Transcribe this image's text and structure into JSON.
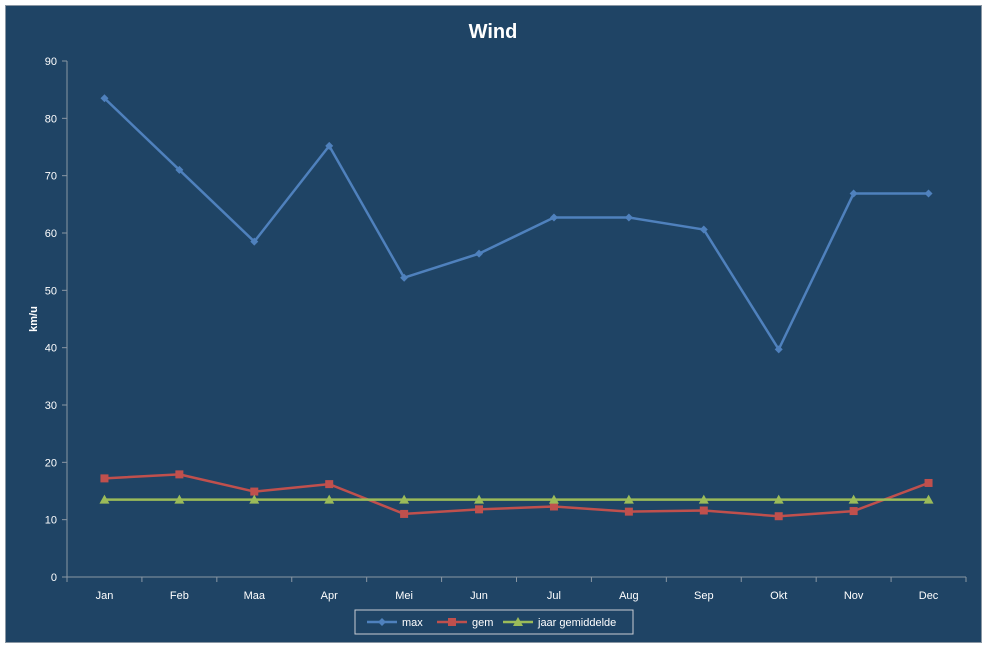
{
  "chart_data": {
    "type": "line",
    "title": "Wind",
    "xlabel": "",
    "ylabel": "km/u",
    "categories": [
      "Jan",
      "Feb",
      "Maa",
      "Apr",
      "Mei",
      "Jun",
      "Jul",
      "Aug",
      "Sep",
      "Okt",
      "Nov",
      "Dec"
    ],
    "ylim": [
      0,
      90
    ],
    "yticks": [
      0,
      10,
      20,
      30,
      40,
      50,
      60,
      70,
      80,
      90
    ],
    "grid": false,
    "legend_position": "bottom",
    "series": [
      {
        "name": "max",
        "color": "#4F81BD",
        "marker": "diamond",
        "values": [
          83.5,
          71.0,
          58.5,
          75.2,
          52.2,
          56.4,
          62.7,
          62.7,
          60.6,
          39.7,
          66.9,
          66.9
        ]
      },
      {
        "name": "gem",
        "color": "#C0504D",
        "marker": "square",
        "values": [
          17.2,
          17.9,
          14.9,
          16.2,
          11.0,
          11.8,
          12.3,
          11.4,
          11.6,
          10.6,
          11.5,
          16.4
        ]
      },
      {
        "name": "jaar gemiddelde",
        "color": "#9BBB59",
        "marker": "triangle",
        "values": [
          13.5,
          13.5,
          13.5,
          13.5,
          13.5,
          13.5,
          13.5,
          13.5,
          13.5,
          13.5,
          13.5,
          13.5
        ]
      }
    ]
  }
}
